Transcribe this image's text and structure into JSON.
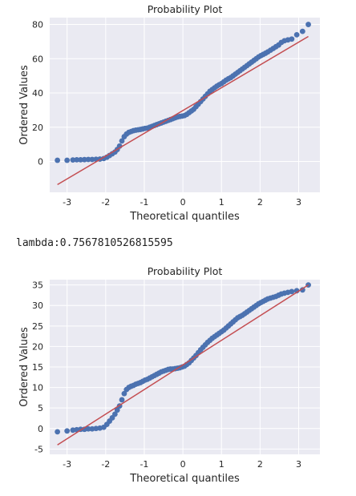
{
  "output_text": "lambda:0.7567810526815595",
  "colors": {
    "panel_bg": "#eaeaf2",
    "grid": "#ffffff",
    "points": "#4c72b0",
    "fit_line": "#c44e52",
    "text": "#262626"
  },
  "chart_data": [
    {
      "type": "scatter",
      "title": "Probability Plot",
      "xlabel": "Theoretical quantiles",
      "ylabel": "Ordered Values",
      "xlim": [
        -3.45,
        3.55
      ],
      "ylim": [
        -18,
        84
      ],
      "xticks": [
        -3,
        -2,
        -1,
        0,
        1,
        2,
        3
      ],
      "yticks": [
        0,
        20,
        40,
        60,
        80
      ],
      "grid": true,
      "fit_line": {
        "x": [
          -3.25,
          3.25
        ],
        "y": [
          -13.5,
          73
        ]
      },
      "series": [
        {
          "x": [
            -3.25,
            -3.0,
            -2.85,
            -2.75,
            -2.65,
            -2.55,
            -2.45,
            -2.35,
            -2.25,
            -2.15,
            -2.05,
            -1.97,
            -1.9,
            -1.83,
            -1.76,
            -1.7,
            -1.64,
            -1.58,
            -1.52,
            -1.46,
            -1.4,
            -1.34,
            -1.28,
            -1.22,
            -1.16,
            -1.1,
            -1.04,
            -0.98,
            -0.92,
            -0.86,
            -0.8,
            -0.74,
            -0.68,
            -0.62,
            -0.56,
            -0.5,
            -0.44,
            -0.38,
            -0.32,
            -0.26,
            -0.2,
            -0.14,
            -0.08,
            -0.02,
            0.04,
            0.1,
            0.16,
            0.22,
            0.28,
            0.34,
            0.4,
            0.46,
            0.52,
            0.58,
            0.64,
            0.7,
            0.76,
            0.82,
            0.88,
            0.94,
            1.0,
            1.06,
            1.12,
            1.18,
            1.24,
            1.3,
            1.36,
            1.42,
            1.48,
            1.54,
            1.6,
            1.66,
            1.72,
            1.78,
            1.84,
            1.9,
            1.96,
            2.02,
            2.08,
            2.14,
            2.2,
            2.27,
            2.34,
            2.41,
            2.48,
            2.55,
            2.63,
            2.72,
            2.82,
            2.95,
            3.1,
            3.25
          ],
          "y": [
            0.7,
            0.7,
            0.9,
            1.0,
            1.0,
            1.1,
            1.2,
            1.2,
            1.3,
            1.4,
            1.7,
            2.5,
            3.5,
            4.5,
            5.5,
            7.0,
            9.0,
            12.0,
            14.5,
            16.0,
            17.0,
            17.5,
            18.0,
            18.3,
            18.5,
            18.7,
            19.0,
            19.3,
            19.5,
            20.0,
            20.5,
            21.0,
            21.5,
            22.0,
            22.5,
            23.0,
            23.5,
            24.0,
            24.5,
            25.0,
            25.5,
            26.0,
            26.3,
            26.5,
            26.8,
            27.5,
            28.5,
            29.5,
            30.5,
            32.0,
            33.5,
            35.0,
            36.5,
            38.0,
            39.5,
            41.0,
            42.0,
            43.0,
            44.0,
            44.8,
            45.5,
            46.5,
            47.5,
            48.3,
            49.0,
            50.0,
            51.0,
            52.0,
            53.0,
            54.0,
            55.0,
            56.0,
            57.0,
            58.0,
            59.0,
            60.0,
            61.0,
            61.8,
            62.5,
            63.2,
            64.0,
            65.0,
            66.0,
            67.0,
            68.0,
            69.5,
            70.5,
            71.0,
            71.5,
            74.0,
            76.0,
            80.0
          ]
        }
      ]
    },
    {
      "type": "scatter",
      "title": "Probability Plot",
      "xlabel": "Theoretical quantiles",
      "ylabel": "Ordered Values",
      "xlim": [
        -3.45,
        3.55
      ],
      "ylim": [
        -6.3,
        36.3
      ],
      "xticks": [
        -3,
        -2,
        -1,
        0,
        1,
        2,
        3
      ],
      "yticks": [
        -5,
        0,
        5,
        10,
        15,
        20,
        25,
        30,
        35
      ],
      "grid": true,
      "fit_line": {
        "x": [
          -3.25,
          3.25
        ],
        "y": [
          -4.0,
          35.0
        ]
      },
      "series": [
        {
          "x": [
            -3.25,
            -3.0,
            -2.85,
            -2.75,
            -2.65,
            -2.55,
            -2.45,
            -2.35,
            -2.25,
            -2.15,
            -2.05,
            -1.97,
            -1.9,
            -1.83,
            -1.76,
            -1.7,
            -1.64,
            -1.58,
            -1.52,
            -1.46,
            -1.4,
            -1.34,
            -1.28,
            -1.22,
            -1.16,
            -1.1,
            -1.04,
            -0.98,
            -0.92,
            -0.86,
            -0.8,
            -0.74,
            -0.68,
            -0.62,
            -0.56,
            -0.5,
            -0.44,
            -0.38,
            -0.32,
            -0.26,
            -0.2,
            -0.14,
            -0.08,
            -0.02,
            0.04,
            0.1,
            0.16,
            0.22,
            0.28,
            0.34,
            0.4,
            0.46,
            0.52,
            0.58,
            0.64,
            0.7,
            0.76,
            0.82,
            0.88,
            0.94,
            1.0,
            1.06,
            1.12,
            1.18,
            1.24,
            1.3,
            1.36,
            1.42,
            1.48,
            1.54,
            1.6,
            1.66,
            1.72,
            1.78,
            1.84,
            1.9,
            1.96,
            2.02,
            2.08,
            2.14,
            2.2,
            2.27,
            2.34,
            2.41,
            2.48,
            2.55,
            2.63,
            2.72,
            2.82,
            2.95,
            3.1,
            3.25
          ],
          "y": [
            -0.8,
            -0.6,
            -0.4,
            -0.3,
            -0.2,
            -0.2,
            -0.1,
            -0.1,
            0.0,
            0.1,
            0.3,
            1.0,
            1.8,
            2.6,
            3.5,
            4.5,
            5.5,
            7.0,
            8.5,
            9.5,
            10.0,
            10.3,
            10.5,
            10.8,
            11.0,
            11.2,
            11.5,
            11.8,
            12.0,
            12.3,
            12.6,
            12.9,
            13.2,
            13.5,
            13.8,
            14.0,
            14.2,
            14.4,
            14.5,
            14.5,
            14.6,
            14.7,
            14.8,
            15.0,
            15.2,
            15.6,
            16.0,
            16.6,
            17.2,
            17.8,
            18.5,
            19.2,
            19.8,
            20.4,
            21.0,
            21.5,
            22.0,
            22.4,
            22.8,
            23.2,
            23.6,
            24.0,
            24.5,
            25.0,
            25.5,
            26.0,
            26.5,
            27.0,
            27.3,
            27.6,
            28.0,
            28.4,
            28.8,
            29.2,
            29.6,
            30.0,
            30.4,
            30.7,
            31.0,
            31.3,
            31.6,
            31.8,
            32.0,
            32.2,
            32.5,
            32.8,
            33.0,
            33.2,
            33.4,
            33.6,
            33.8,
            35.0
          ]
        }
      ]
    }
  ]
}
